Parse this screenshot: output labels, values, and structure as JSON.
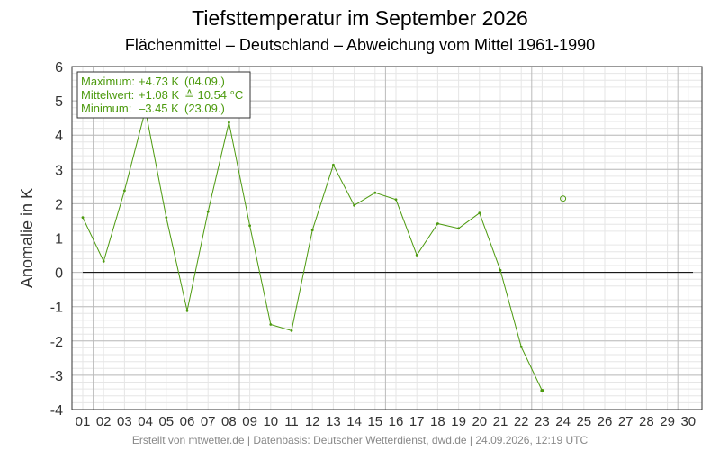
{
  "title": "Tiefsttemperatur im September 2026",
  "subtitle": "Flächenmittel – Deutschland – Abweichung vom Mittel 1961-1990",
  "credit": "Erstellt von mtwetter.de | Datenbasis: Deutscher Wetterdienst, dwd.de | 24.09.2026, 12:19 UTC",
  "colors": {
    "series": "#4c9a0e",
    "zero_line": "#000000",
    "grid_major": "#bbbbbb",
    "grid_minor": "#e6e6e6"
  },
  "stats": {
    "max_label": "Maximum:",
    "max_value": "+4.73 K",
    "max_date": "(04.09.)",
    "mean_label": "Mittelwert:",
    "mean_value": "+1.08 K",
    "mean_abs": "≙ 10.54 °C",
    "min_label": "Minimum:",
    "min_value": "–3.45 K",
    "min_date": "(23.09.)"
  },
  "chart_data": {
    "type": "line",
    "ylabel": "Anomalie in K",
    "ylim": [
      -4,
      6
    ],
    "yticks": [
      "-4",
      "-3",
      "-2",
      "-1",
      "0",
      "1",
      "2",
      "3",
      "4",
      "5",
      "6"
    ],
    "categories": [
      "01",
      "02",
      "03",
      "04",
      "05",
      "06",
      "07",
      "08",
      "09",
      "10",
      "11",
      "12",
      "13",
      "14",
      "15",
      "16",
      "17",
      "18",
      "19",
      "20",
      "21",
      "22",
      "23",
      "24",
      "25",
      "26",
      "27",
      "28",
      "29",
      "30"
    ],
    "values": [
      1.6,
      0.32,
      2.38,
      4.73,
      1.6,
      -1.12,
      1.77,
      4.37,
      1.36,
      -1.52,
      -1.7,
      1.23,
      3.13,
      1.95,
      2.32,
      2.12,
      0.5,
      1.42,
      1.28,
      1.73,
      0.06,
      -2.17,
      -3.45,
      null,
      null,
      null,
      null,
      null,
      null,
      null
    ],
    "forecast": {
      "day": "24",
      "value": 2.15
    },
    "grid": true,
    "legend": "top-left"
  }
}
